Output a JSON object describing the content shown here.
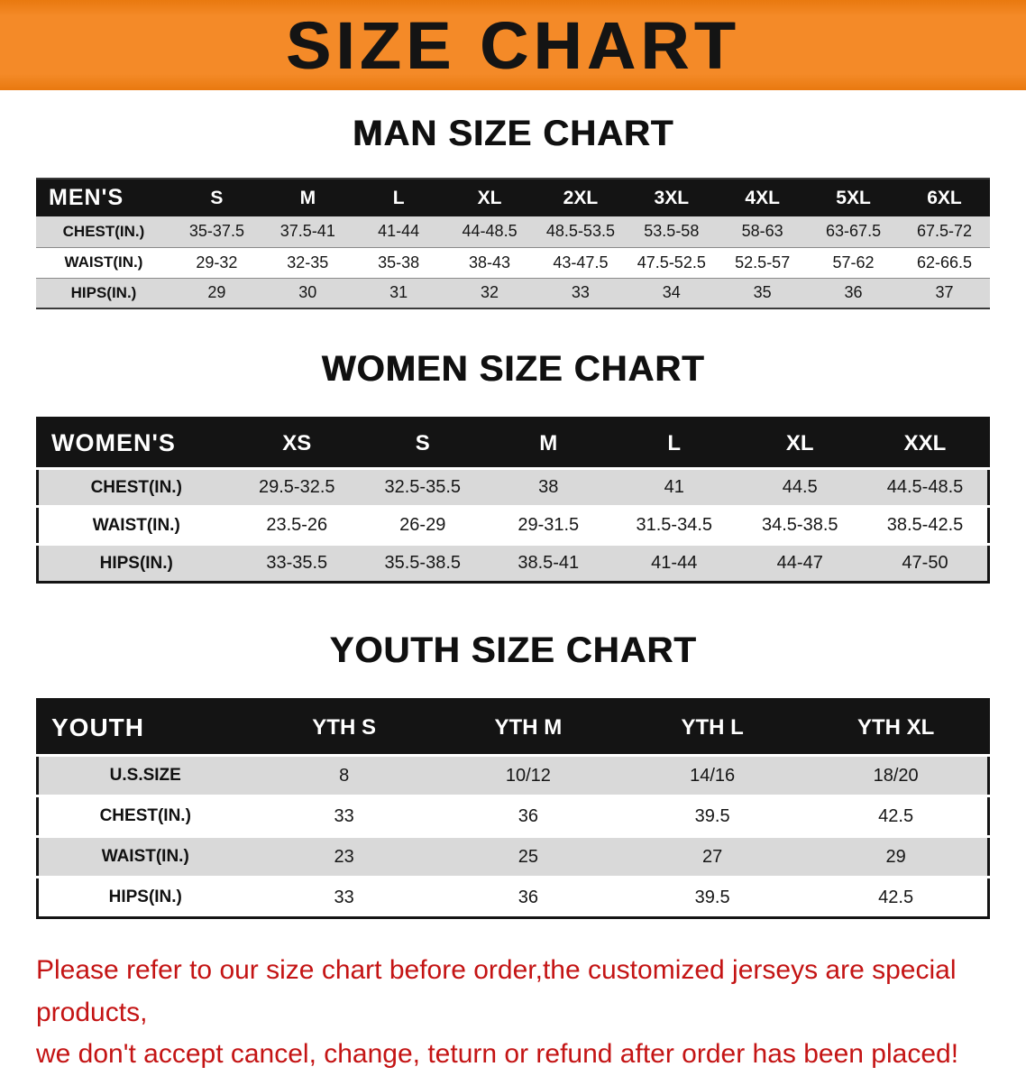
{
  "banner": {
    "title": "SIZE CHART",
    "bg_color": "#f08121"
  },
  "sections": [
    {
      "heading": "MAN SIZE CHART",
      "table": {
        "header_label": "MEN'S",
        "columns": [
          "S",
          "M",
          "L",
          "XL",
          "2XL",
          "3XL",
          "4XL",
          "5XL",
          "6XL"
        ],
        "rows": [
          {
            "label": "CHEST(IN.)",
            "values": [
              "35-37.5",
              "37.5-41",
              "41-44",
              "44-48.5",
              "48.5-53.5",
              "53.5-58",
              "58-63",
              "63-67.5",
              "67.5-72"
            ]
          },
          {
            "label": "WAIST(IN.)",
            "values": [
              "29-32",
              "32-35",
              "35-38",
              "38-43",
              "43-47.5",
              "47.5-52.5",
              "52.5-57",
              "57-62",
              "62-66.5"
            ]
          },
          {
            "label": "HIPS(IN.)",
            "values": [
              "29",
              "30",
              "31",
              "32",
              "33",
              "34",
              "35",
              "36",
              "37"
            ]
          }
        ]
      }
    },
    {
      "heading": "WOMEN SIZE CHART",
      "table": {
        "header_label": "WOMEN'S",
        "columns": [
          "XS",
          "S",
          "M",
          "L",
          "XL",
          "XXL"
        ],
        "rows": [
          {
            "label": "CHEST(IN.)",
            "values": [
              "29.5-32.5",
              "32.5-35.5",
              "38",
              "41",
              "44.5",
              "44.5-48.5"
            ]
          },
          {
            "label": "WAIST(IN.)",
            "values": [
              "23.5-26",
              "26-29",
              "29-31.5",
              "31.5-34.5",
              "34.5-38.5",
              "38.5-42.5"
            ]
          },
          {
            "label": "HIPS(IN.)",
            "values": [
              "33-35.5",
              "35.5-38.5",
              "38.5-41",
              "41-44",
              "44-47",
              "47-50"
            ]
          }
        ]
      }
    },
    {
      "heading": "YOUTH SIZE CHART",
      "table": {
        "header_label": "YOUTH",
        "columns": [
          "YTH S",
          "YTH M",
          "YTH L",
          "YTH XL"
        ],
        "rows": [
          {
            "label": "U.S.SIZE",
            "values": [
              "8",
              "10/12",
              "14/16",
              "18/20"
            ]
          },
          {
            "label": "CHEST(IN.)",
            "values": [
              "33",
              "36",
              "39.5",
              "42.5"
            ]
          },
          {
            "label": "WAIST(IN.)",
            "values": [
              "23",
              "25",
              "27",
              "29"
            ]
          },
          {
            "label": "HIPS(IN.)",
            "values": [
              "33",
              "36",
              "39.5",
              "42.5"
            ]
          }
        ]
      }
    }
  ],
  "footer": {
    "line1": "Please refer to our size chart before order,the customized jerseys are special products,",
    "line2": "we don't accept cancel, change, teturn or refund after order has been placed!",
    "text_color": "#c41414"
  }
}
